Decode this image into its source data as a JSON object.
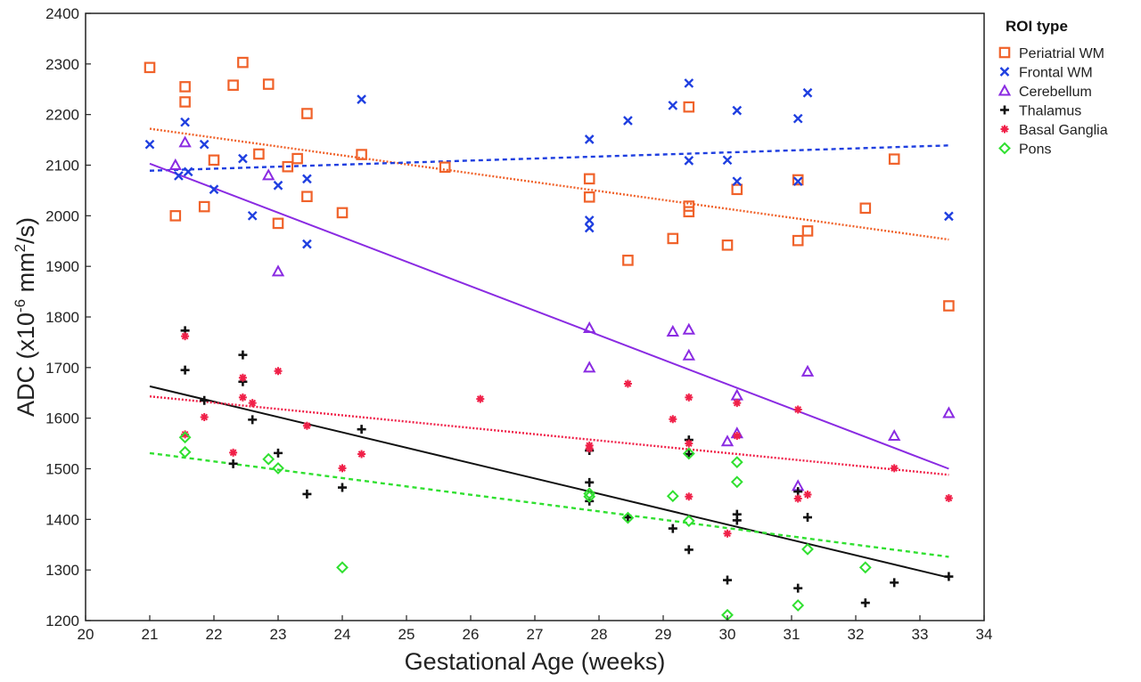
{
  "chart_data": {
    "type": "scatter",
    "xlabel": "Gestational Age (weeks)",
    "ylabel_parts": {
      "pre": "ADC (x10",
      "exp1": "-6",
      "mid": " mm",
      "exp2": "2",
      "post": "/s)"
    },
    "xlim": [
      20,
      34
    ],
    "ylim": [
      1200,
      2400
    ],
    "xticks": [
      "20",
      "21",
      "22",
      "23",
      "24",
      "25",
      "26",
      "27",
      "28",
      "29",
      "30",
      "31",
      "32",
      "33",
      "34"
    ],
    "yticks": [
      "1200",
      "1300",
      "1400",
      "1500",
      "1600",
      "1700",
      "1800",
      "1900",
      "2000",
      "2100",
      "2200",
      "2300",
      "2400"
    ],
    "grid": false,
    "legend": {
      "title": "ROI type",
      "placement": "right"
    },
    "series": [
      {
        "name": "Periatrial WM",
        "color": "#f0622a",
        "marker": "square",
        "fit": {
          "from": [
            21,
            2172
          ],
          "to": [
            33.45,
            1953
          ],
          "style": "dotted"
        },
        "points": [
          [
            21,
            2293
          ],
          [
            21.4,
            2000
          ],
          [
            21.55,
            2255
          ],
          [
            21.55,
            2225
          ],
          [
            21.85,
            2018
          ],
          [
            22,
            2110
          ],
          [
            22.3,
            2258
          ],
          [
            22.45,
            2303
          ],
          [
            22.7,
            2122
          ],
          [
            22.85,
            2260
          ],
          [
            23,
            1985
          ],
          [
            23.15,
            2097
          ],
          [
            23.3,
            2113
          ],
          [
            23.45,
            2202
          ],
          [
            23.45,
            2038
          ],
          [
            24,
            2006
          ],
          [
            24.3,
            2121
          ],
          [
            25.6,
            2096
          ],
          [
            27.85,
            2073
          ],
          [
            27.85,
            2037
          ],
          [
            28.45,
            1912
          ],
          [
            29.15,
            1955
          ],
          [
            29.4,
            2215
          ],
          [
            29.4,
            2019
          ],
          [
            29.4,
            2008
          ],
          [
            30,
            1942
          ],
          [
            30.15,
            2052
          ],
          [
            31.1,
            2071
          ],
          [
            31.1,
            1951
          ],
          [
            31.25,
            1970
          ],
          [
            32.15,
            2015
          ],
          [
            32.6,
            2112
          ],
          [
            33.45,
            1822
          ]
        ]
      },
      {
        "name": "Frontal WM",
        "color": "#1f3fe0",
        "marker": "x",
        "fit": {
          "from": [
            21,
            2089
          ],
          "to": [
            33.45,
            2139
          ],
          "style": "dashed"
        },
        "points": [
          [
            21,
            2141
          ],
          [
            21.45,
            2079
          ],
          [
            21.55,
            2185
          ],
          [
            21.6,
            2087
          ],
          [
            21.85,
            2141
          ],
          [
            22,
            2052
          ],
          [
            22.45,
            2113
          ],
          [
            22.6,
            2000
          ],
          [
            23,
            2060
          ],
          [
            23.45,
            2073
          ],
          [
            23.45,
            1944
          ],
          [
            24.3,
            2230
          ],
          [
            27.85,
            2151
          ],
          [
            27.85,
            1991
          ],
          [
            27.85,
            1976
          ],
          [
            28.45,
            2188
          ],
          [
            29.15,
            2218
          ],
          [
            29.4,
            2262
          ],
          [
            29.4,
            2109
          ],
          [
            30,
            2110
          ],
          [
            30.15,
            2208
          ],
          [
            30.15,
            2068
          ],
          [
            31.1,
            2192
          ],
          [
            31.1,
            2068
          ],
          [
            31.25,
            2243
          ],
          [
            33.45,
            1999
          ]
        ]
      },
      {
        "name": "Cerebellum",
        "color": "#8a2be2",
        "marker": "triangle",
        "fit": {
          "from": [
            21,
            2103
          ],
          "to": [
            33.45,
            1500
          ],
          "style": "solid"
        },
        "points": [
          [
            21.4,
            2100
          ],
          [
            21.55,
            2145
          ],
          [
            22.85,
            2080
          ],
          [
            23,
            1890
          ],
          [
            27.85,
            1778
          ],
          [
            27.85,
            1700
          ],
          [
            29.15,
            1771
          ],
          [
            29.4,
            1775
          ],
          [
            29.4,
            1724
          ],
          [
            30,
            1554
          ],
          [
            30.15,
            1645
          ],
          [
            30.15,
            1570
          ],
          [
            31.1,
            1466
          ],
          [
            31.25,
            1692
          ],
          [
            32.6,
            1565
          ],
          [
            33.45,
            1610
          ]
        ]
      },
      {
        "name": "Thalamus",
        "color": "#111111",
        "marker": "plus",
        "fit": {
          "from": [
            21,
            1663
          ],
          "to": [
            33.45,
            1285
          ],
          "style": "solid"
        },
        "points": [
          [
            21.55,
            1773
          ],
          [
            21.55,
            1695
          ],
          [
            21.85,
            1635
          ],
          [
            22.3,
            1510
          ],
          [
            22.45,
            1725
          ],
          [
            22.45,
            1672
          ],
          [
            22.6,
            1597
          ],
          [
            23,
            1531
          ],
          [
            23.45,
            1450
          ],
          [
            24,
            1463
          ],
          [
            24.3,
            1578
          ],
          [
            27.85,
            1536
          ],
          [
            27.85,
            1473
          ],
          [
            27.85,
            1436
          ],
          [
            28.45,
            1404
          ],
          [
            29.15,
            1382
          ],
          [
            29.4,
            1557
          ],
          [
            29.4,
            1529
          ],
          [
            29.4,
            1340
          ],
          [
            30,
            1280
          ],
          [
            30.15,
            1410
          ],
          [
            30.15,
            1398
          ],
          [
            31.1,
            1455
          ],
          [
            31.1,
            1264
          ],
          [
            31.25,
            1404
          ],
          [
            32.15,
            1235
          ],
          [
            32.6,
            1275
          ],
          [
            33.45,
            1287
          ]
        ]
      },
      {
        "name": "Basal Ganglia",
        "color": "#f02048",
        "marker": "star",
        "fit": {
          "from": [
            21,
            1643
          ],
          "to": [
            33.45,
            1488
          ],
          "style": "dotted"
        },
        "points": [
          [
            21.55,
            1762
          ],
          [
            21.55,
            1568
          ],
          [
            21.85,
            1602
          ],
          [
            22.3,
            1532
          ],
          [
            22.45,
            1680
          ],
          [
            22.45,
            1641
          ],
          [
            22.6,
            1630
          ],
          [
            23,
            1693
          ],
          [
            23.45,
            1585
          ],
          [
            24,
            1501
          ],
          [
            24.3,
            1529
          ],
          [
            26.15,
            1638
          ],
          [
            27.85,
            1546
          ],
          [
            27.85,
            1540
          ],
          [
            28.45,
            1668
          ],
          [
            29.15,
            1598
          ],
          [
            29.4,
            1641
          ],
          [
            29.4,
            1550
          ],
          [
            29.4,
            1445
          ],
          [
            30,
            1372
          ],
          [
            30.15,
            1630
          ],
          [
            30.15,
            1565
          ],
          [
            31.1,
            1617
          ],
          [
            31.1,
            1441
          ],
          [
            31.25,
            1449
          ],
          [
            32.6,
            1501
          ],
          [
            33.45,
            1442
          ]
        ]
      },
      {
        "name": "Pons",
        "color": "#30e030",
        "marker": "diamond",
        "fit": {
          "from": [
            21,
            1531
          ],
          "to": [
            33.45,
            1326
          ],
          "style": "dashed"
        },
        "points": [
          [
            21.55,
            1562
          ],
          [
            21.55,
            1533
          ],
          [
            22.85,
            1519
          ],
          [
            23,
            1501
          ],
          [
            24,
            1305
          ],
          [
            27.85,
            1451
          ],
          [
            27.85,
            1445
          ],
          [
            28.45,
            1403
          ],
          [
            29.15,
            1446
          ],
          [
            29.4,
            1530
          ],
          [
            29.4,
            1397
          ],
          [
            30,
            1211
          ],
          [
            30.15,
            1513
          ],
          [
            30.15,
            1474
          ],
          [
            31.1,
            1230
          ],
          [
            31.25,
            1341
          ],
          [
            32.15,
            1305
          ]
        ]
      }
    ]
  }
}
